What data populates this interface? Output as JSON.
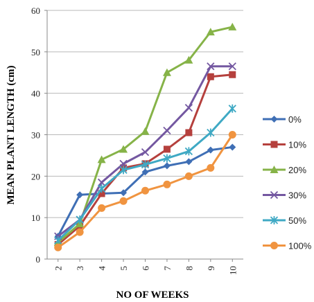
{
  "chart_data": {
    "type": "line",
    "title": "",
    "xlabel": "NO OF WEEKS",
    "ylabel": "MEAN PLANT LENGTH (cm)",
    "x": [
      2,
      3,
      4,
      5,
      6,
      7,
      8,
      9,
      10
    ],
    "ylim": [
      0,
      60
    ],
    "yticks": [
      0,
      10,
      20,
      30,
      40,
      50,
      60
    ],
    "grid": "horizontal",
    "legend_position": "right",
    "series": [
      {
        "name": "0%",
        "color": "#3f6fb5",
        "marker": "diamond",
        "values": [
          5.5,
          15.5,
          15.8,
          16,
          21,
          22.5,
          23.5,
          26.3,
          27
        ]
      },
      {
        "name": "10%",
        "color": "#b5403d",
        "marker": "square",
        "values": [
          3.5,
          8,
          15.8,
          22,
          23,
          26.5,
          30.5,
          44,
          44.5
        ]
      },
      {
        "name": "20%",
        "color": "#86b348",
        "marker": "triangle",
        "values": [
          4,
          8.5,
          24,
          26.5,
          30.8,
          45,
          48,
          54.8,
          56
        ]
      },
      {
        "name": "30%",
        "color": "#7458a1",
        "marker": "x",
        "values": [
          5.5,
          9.5,
          18.5,
          23,
          25.8,
          31,
          36.5,
          46.5,
          46.5
        ]
      },
      {
        "name": "50%",
        "color": "#3fa9c4",
        "marker": "star",
        "values": [
          4.5,
          9.5,
          17,
          21.5,
          22.8,
          24.3,
          26,
          30.5,
          36.3
        ]
      },
      {
        "name": "100%",
        "color": "#f09440",
        "marker": "circle",
        "values": [
          2.8,
          6.5,
          12.3,
          14,
          16.5,
          18,
          20,
          22,
          30
        ]
      }
    ]
  }
}
